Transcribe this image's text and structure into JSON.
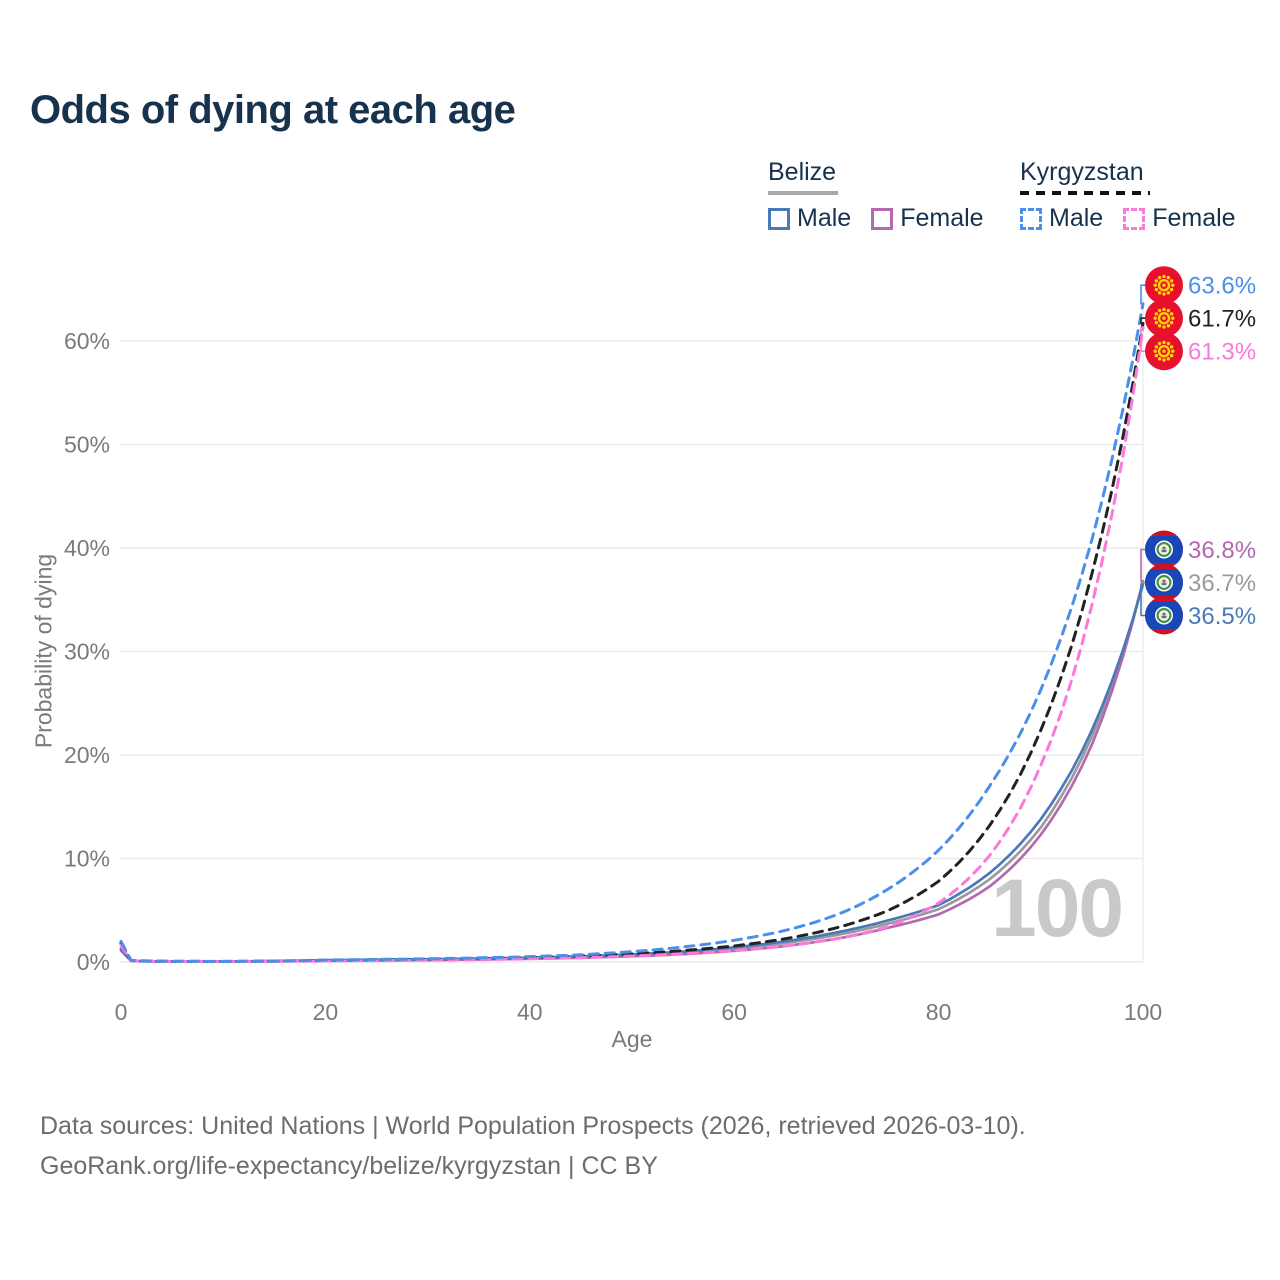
{
  "title": "Odds of dying at each age",
  "colors": {
    "title_text": "#17324d",
    "axis_text": "#7a7a7a",
    "grid": "#e8e8e8",
    "hover_line": "#ececec",
    "watermark": "#c9c9c9",
    "footer_text": "#6d6d6d",
    "belize_male": "#4a79b8",
    "belize_female": "#b269af",
    "belize_all": "#9a9a9a",
    "kyrgyzstan_male": "#4a8fea",
    "kyrgyzstan_female": "#fb7ad9",
    "kyrgyzstan_all": "#222222"
  },
  "legend": {
    "groups": [
      {
        "label": "Belize",
        "line_style": "solid",
        "items": [
          {
            "label": "Male",
            "color": "#4a79b8"
          },
          {
            "label": "Female",
            "color": "#b269af"
          }
        ]
      },
      {
        "label": "Kyrgyzstan",
        "line_style": "dashed",
        "items": [
          {
            "label": "Male",
            "color": "#4a8fea"
          },
          {
            "label": "Female",
            "color": "#fb7ad9"
          }
        ]
      }
    ]
  },
  "chart_data": {
    "type": "line",
    "title": "Odds of dying at each age",
    "xlabel": "Age",
    "ylabel": "Probability of dying",
    "xlim": [
      0,
      100
    ],
    "ylim_pct": [
      0,
      66
    ],
    "grid": "horizontal",
    "legend_position": "top-right",
    "hovered_x_label": "100",
    "x_ticks": [
      {
        "value": 0,
        "label": "0"
      },
      {
        "value": 20,
        "label": "20"
      },
      {
        "value": 40,
        "label": "40"
      },
      {
        "value": 60,
        "label": "60"
      },
      {
        "value": 80,
        "label": "80"
      },
      {
        "value": 100,
        "label": "100"
      }
    ],
    "y_ticks": [
      {
        "value": 0,
        "label": "0%"
      },
      {
        "value": 10,
        "label": "10%"
      },
      {
        "value": 20,
        "label": "20%"
      },
      {
        "value": 30,
        "label": "30%"
      },
      {
        "value": 40,
        "label": "40%"
      },
      {
        "value": 50,
        "label": "50%"
      },
      {
        "value": 60,
        "label": "60%"
      }
    ],
    "series": [
      {
        "name": "Belize All",
        "color": "#9a9a9a",
        "dashed": false,
        "end_label": "36.7%",
        "label_color": "#9a9a9a",
        "flag": "belize",
        "points": [
          [
            0,
            1.2
          ],
          [
            1,
            0.09
          ],
          [
            5,
            0.04
          ],
          [
            10,
            0.04
          ],
          [
            15,
            0.08
          ],
          [
            20,
            0.14
          ],
          [
            25,
            0.18
          ],
          [
            30,
            0.23
          ],
          [
            35,
            0.29
          ],
          [
            40,
            0.37
          ],
          [
            45,
            0.49
          ],
          [
            50,
            0.66
          ],
          [
            55,
            0.92
          ],
          [
            60,
            1.3
          ],
          [
            65,
            1.85
          ],
          [
            70,
            2.6
          ],
          [
            75,
            3.7
          ],
          [
            80,
            5.1
          ],
          [
            85,
            8.0
          ],
          [
            90,
            13.0
          ],
          [
            95,
            21.8
          ],
          [
            100,
            36.7
          ]
        ]
      },
      {
        "name": "Belize Female",
        "color": "#b269af",
        "dashed": false,
        "end_label": "36.8%",
        "label_color": "#b269af",
        "flag": "belize",
        "points": [
          [
            0,
            1.1
          ],
          [
            1,
            0.08
          ],
          [
            5,
            0.04
          ],
          [
            10,
            0.03
          ],
          [
            15,
            0.06
          ],
          [
            20,
            0.1
          ],
          [
            25,
            0.14
          ],
          [
            30,
            0.18
          ],
          [
            35,
            0.24
          ],
          [
            40,
            0.31
          ],
          [
            45,
            0.41
          ],
          [
            50,
            0.55
          ],
          [
            55,
            0.76
          ],
          [
            60,
            1.08
          ],
          [
            65,
            1.55
          ],
          [
            70,
            2.25
          ],
          [
            75,
            3.3
          ],
          [
            80,
            4.6
          ],
          [
            85,
            7.3
          ],
          [
            90,
            12.3
          ],
          [
            95,
            21.0
          ],
          [
            100,
            36.8
          ]
        ]
      },
      {
        "name": "Belize Male",
        "color": "#4a79b8",
        "dashed": false,
        "end_label": "36.5%",
        "label_color": "#4a79b8",
        "flag": "belize",
        "points": [
          [
            0,
            1.3
          ],
          [
            1,
            0.1
          ],
          [
            5,
            0.05
          ],
          [
            10,
            0.05
          ],
          [
            15,
            0.1
          ],
          [
            20,
            0.17
          ],
          [
            25,
            0.22
          ],
          [
            30,
            0.27
          ],
          [
            35,
            0.33
          ],
          [
            40,
            0.42
          ],
          [
            45,
            0.55
          ],
          [
            50,
            0.73
          ],
          [
            55,
            1.0
          ],
          [
            60,
            1.42
          ],
          [
            65,
            2.0
          ],
          [
            70,
            2.85
          ],
          [
            75,
            4.0
          ],
          [
            80,
            5.5
          ],
          [
            85,
            8.6
          ],
          [
            90,
            13.8
          ],
          [
            95,
            22.4
          ],
          [
            100,
            36.5
          ]
        ]
      },
      {
        "name": "Kyrgyzstan All",
        "color": "#222222",
        "dashed": true,
        "end_label": "61.7%",
        "label_color": "#222222",
        "flag": "kyrgyzstan",
        "points": [
          [
            0,
            1.8
          ],
          [
            1,
            0.13
          ],
          [
            5,
            0.06
          ],
          [
            10,
            0.05
          ],
          [
            15,
            0.08
          ],
          [
            20,
            0.15
          ],
          [
            25,
            0.2
          ],
          [
            30,
            0.25
          ],
          [
            35,
            0.32
          ],
          [
            40,
            0.42
          ],
          [
            45,
            0.57
          ],
          [
            50,
            0.78
          ],
          [
            55,
            1.1
          ],
          [
            60,
            1.55
          ],
          [
            65,
            2.25
          ],
          [
            70,
            3.3
          ],
          [
            75,
            4.95
          ],
          [
            80,
            7.8
          ],
          [
            85,
            13.2
          ],
          [
            90,
            22.4
          ],
          [
            95,
            37.5
          ],
          [
            100,
            61.7
          ]
        ]
      },
      {
        "name": "Kyrgyzstan Female",
        "color": "#fb7ad9",
        "dashed": true,
        "end_label": "61.3%",
        "label_color": "#fb7ad9",
        "flag": "kyrgyzstan",
        "points": [
          [
            0,
            1.6
          ],
          [
            1,
            0.11
          ],
          [
            5,
            0.05
          ],
          [
            10,
            0.04
          ],
          [
            15,
            0.06
          ],
          [
            20,
            0.1
          ],
          [
            25,
            0.13
          ],
          [
            30,
            0.17
          ],
          [
            35,
            0.23
          ],
          [
            40,
            0.31
          ],
          [
            45,
            0.42
          ],
          [
            50,
            0.58
          ],
          [
            55,
            0.8
          ],
          [
            60,
            1.1
          ],
          [
            65,
            1.55
          ],
          [
            70,
            2.25
          ],
          [
            75,
            3.4
          ],
          [
            80,
            5.7
          ],
          [
            85,
            10.3
          ],
          [
            90,
            19.0
          ],
          [
            95,
            34.5
          ],
          [
            100,
            61.3
          ]
        ]
      },
      {
        "name": "Kyrgyzstan Male",
        "color": "#4a8fea",
        "dashed": true,
        "end_label": "63.6%",
        "label_color": "#4a8fea",
        "flag": "kyrgyzstan",
        "points": [
          [
            0,
            2.0
          ],
          [
            1,
            0.14
          ],
          [
            5,
            0.07
          ],
          [
            10,
            0.06
          ],
          [
            15,
            0.1
          ],
          [
            20,
            0.19
          ],
          [
            25,
            0.25
          ],
          [
            30,
            0.31
          ],
          [
            35,
            0.4
          ],
          [
            40,
            0.52
          ],
          [
            45,
            0.7
          ],
          [
            50,
            1.0
          ],
          [
            55,
            1.45
          ],
          [
            60,
            2.1
          ],
          [
            65,
            3.05
          ],
          [
            70,
            4.55
          ],
          [
            75,
            7.0
          ],
          [
            80,
            10.8
          ],
          [
            85,
            17.0
          ],
          [
            90,
            26.3
          ],
          [
            95,
            40.8
          ],
          [
            100,
            63.6
          ]
        ]
      }
    ]
  },
  "footer": {
    "line1": "Data sources: United Nations | World Population Prospects (2026, retrieved 2026-03-10).",
    "line2": "GeoRank.org/life-expectancy/belize/kyrgyzstan | CC BY"
  }
}
